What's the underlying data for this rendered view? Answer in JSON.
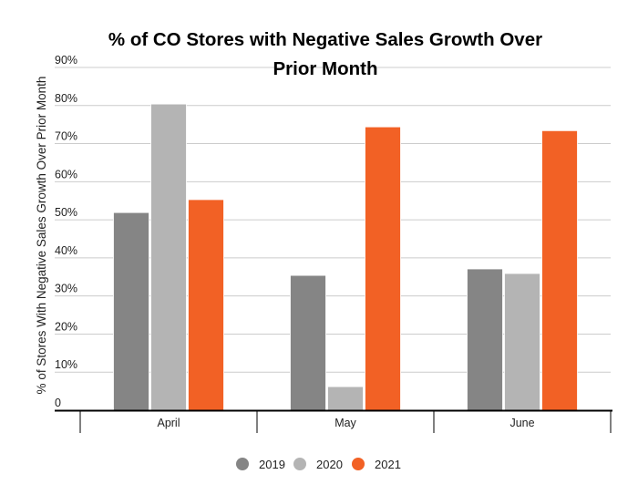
{
  "chart_data": {
    "type": "bar",
    "title_lines": [
      "% of CO Stores with Negative Sales Growth Over",
      "Prior Month"
    ],
    "xlabel": "",
    "ylabel": "% of Stores With Negative Sales Growth Over Prior Month",
    "categories": [
      "April",
      "May",
      "June"
    ],
    "series": [
      {
        "name": "2019",
        "color": "#858585",
        "values": [
          51.9,
          35.4,
          37.1
        ]
      },
      {
        "name": "2020",
        "color": "#b4b4b4",
        "values": [
          80.4,
          6.2,
          35.9
        ]
      },
      {
        "name": "2021",
        "color": "#f26125",
        "values": [
          55.3,
          74.4,
          73.4
        ]
      }
    ],
    "ylim": [
      0,
      90
    ],
    "yticks": [
      0,
      10,
      20,
      30,
      40,
      50,
      60,
      70,
      80,
      90
    ],
    "ytick_labels": [
      "0",
      "10%",
      "20%",
      "30%",
      "40%",
      "50%",
      "60%",
      "70%",
      "80%",
      "90%"
    ],
    "grid": true,
    "legend_position": "bottom"
  }
}
